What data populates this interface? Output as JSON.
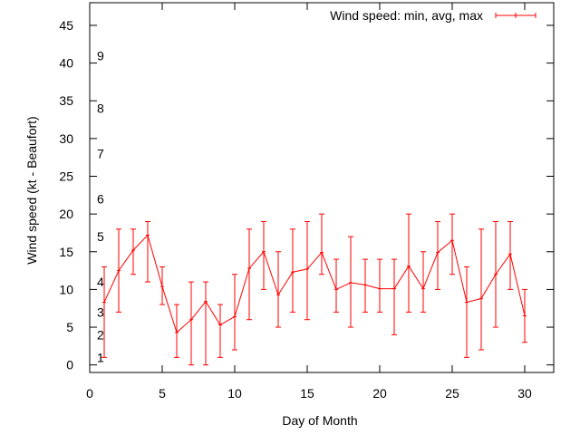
{
  "chart_data": {
    "type": "line",
    "title": "",
    "xlabel": "Day of Month",
    "ylabel": "Wind speed (kt - Beaufort)",
    "xlim": [
      0,
      32
    ],
    "ylim": [
      -1,
      48
    ],
    "xticks": [
      0,
      5,
      10,
      15,
      20,
      25,
      30
    ],
    "yticks": [
      0,
      5,
      10,
      15,
      20,
      25,
      30,
      35,
      40,
      45
    ],
    "legend": {
      "label": "Wind speed: min, avg, max",
      "position": "top-right"
    },
    "color": "#ff0000",
    "beaufort_labels": [
      {
        "label": "1",
        "value": 1
      },
      {
        "label": "2",
        "value": 4
      },
      {
        "label": "3",
        "value": 7
      },
      {
        "label": "4",
        "value": 11
      },
      {
        "label": "5",
        "value": 17
      },
      {
        "label": "6",
        "value": 22
      },
      {
        "label": "7",
        "value": 28
      },
      {
        "label": "8",
        "value": 34
      },
      {
        "label": "9",
        "value": 41
      }
    ],
    "series": [
      {
        "name": "Wind speed: min, avg, max",
        "x": [
          1,
          2,
          3,
          4,
          5,
          6,
          7,
          8,
          9,
          10,
          11,
          12,
          13,
          14,
          15,
          16,
          17,
          18,
          19,
          20,
          21,
          22,
          23,
          24,
          25,
          26,
          27,
          28,
          29,
          30
        ],
        "avg": [
          8.3,
          12.5,
          15.2,
          17.2,
          10.4,
          4.3,
          6.0,
          8.4,
          5.3,
          6.4,
          12.8,
          15.0,
          9.3,
          12.3,
          12.7,
          14.9,
          10.0,
          10.9,
          10.6,
          10.1,
          10.1,
          13.1,
          10.1,
          14.9,
          16.5,
          8.3,
          8.8,
          12.0,
          14.7,
          6.5
        ],
        "min": [
          1,
          7,
          12,
          11,
          8,
          1,
          0,
          0,
          1,
          2,
          6,
          10,
          5,
          7,
          6,
          12,
          7,
          5,
          7,
          7,
          4,
          7,
          7,
          10,
          12,
          1,
          2,
          5,
          10,
          3
        ],
        "max": [
          13,
          18,
          18,
          19,
          13,
          8,
          11,
          11,
          8,
          12,
          18,
          19,
          15,
          18,
          19,
          20,
          14,
          17,
          14,
          14,
          14,
          20,
          15,
          19,
          20,
          13,
          18,
          19,
          19,
          10
        ]
      }
    ]
  }
}
